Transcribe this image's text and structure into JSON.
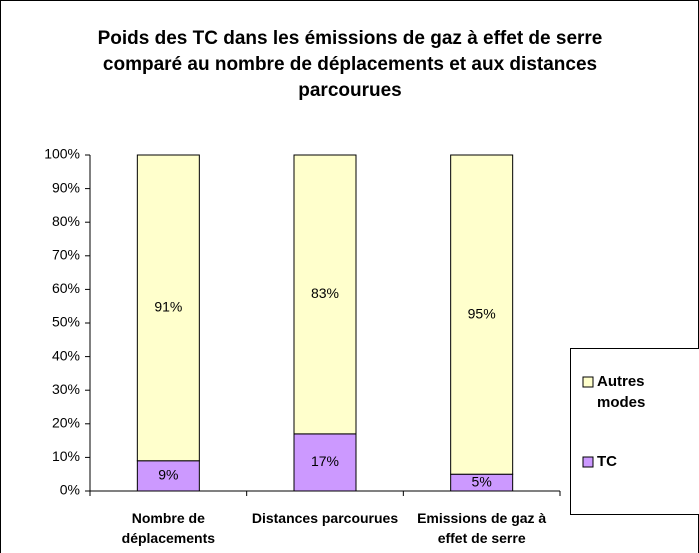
{
  "chart_data": {
    "type": "bar",
    "stacked": true,
    "title": "Poids des TC dans les émissions de gaz à effet de serre comparé au nombre de déplacements et aux distances parcourues",
    "categories": [
      "Nombre de déplacements",
      "Distances parcourues",
      "Emissions de gaz à effet de serre"
    ],
    "series": [
      {
        "name": "TC",
        "color": "#cc99ff",
        "values": [
          9,
          17,
          5
        ],
        "value_labels": [
          "9%",
          "17%",
          "5%"
        ]
      },
      {
        "name": "Autres modes",
        "color": "#ffffcc",
        "values": [
          91,
          83,
          95
        ],
        "value_labels": [
          "91%",
          "83%",
          "95%"
        ]
      }
    ],
    "ylim": [
      0,
      100
    ],
    "yticks": [
      {
        "value": 0,
        "label": "0%"
      },
      {
        "value": 10,
        "label": "10%"
      },
      {
        "value": 20,
        "label": "20%"
      },
      {
        "value": 30,
        "label": "30%"
      },
      {
        "value": 40,
        "label": "40%"
      },
      {
        "value": 50,
        "label": "50%"
      },
      {
        "value": 60,
        "label": "60%"
      },
      {
        "value": 70,
        "label": "70%"
      },
      {
        "value": 80,
        "label": "80%"
      },
      {
        "value": 90,
        "label": "90%"
      },
      {
        "value": 100,
        "label": "100%"
      }
    ],
    "legend": "right"
  }
}
